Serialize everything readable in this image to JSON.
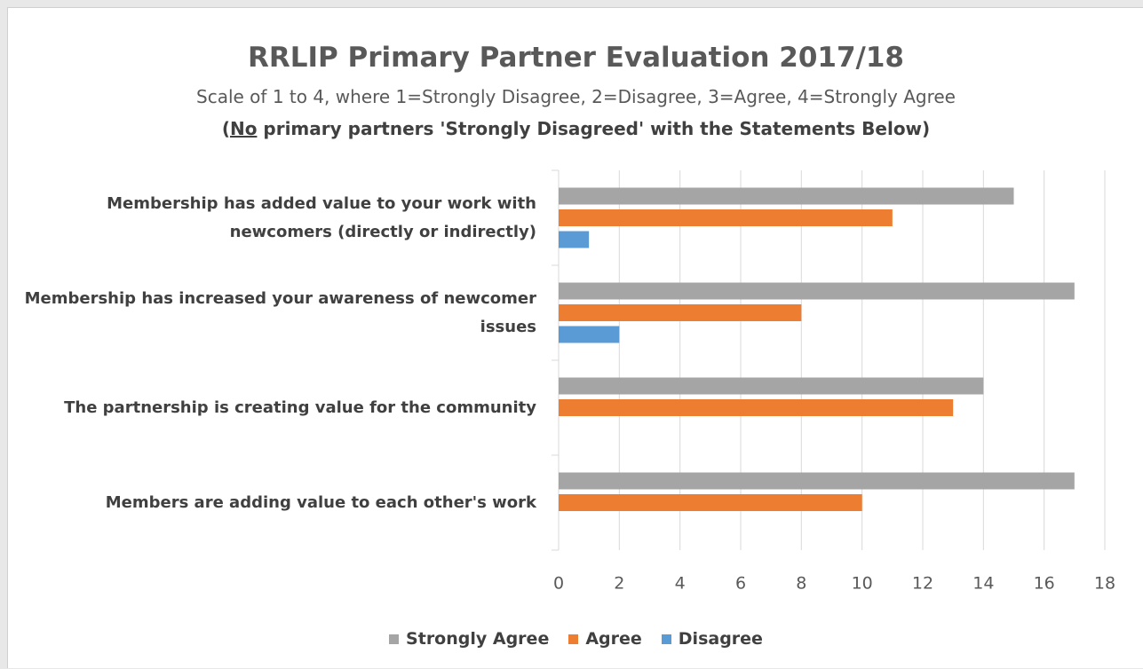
{
  "chart_data": {
    "type": "hbar",
    "title": "RRLIP Primary Partner Evaluation 2017/18",
    "subtitle": "Scale of 1 to 4, where 1=Strongly Disagree, 2=Disagree, 3=Agree, 4=Strongly Agree",
    "note": {
      "prefix": "(",
      "emphasis": "No",
      "rest": " primary partners 'Strongly Disagreed' with the Statements Below)"
    },
    "categories": [
      "Membership has added value to your work with newcomers (directly or indirectly)",
      "Membership has increased your awareness of newcomer issues",
      "The partnership is creating value for the community",
      "Members are adding value to each other's work"
    ],
    "series": [
      {
        "name": "Strongly Agree",
        "color": "#a5a5a5",
        "values": [
          15,
          17,
          14,
          17
        ]
      },
      {
        "name": "Agree",
        "color": "#ed7d31",
        "values": [
          11,
          8,
          13,
          10
        ]
      },
      {
        "name": "Disagree",
        "color": "#5b9bd5",
        "values": [
          1,
          2,
          null,
          null
        ]
      }
    ],
    "xlim": [
      0,
      18
    ],
    "xticks": [
      0,
      2,
      4,
      6,
      8,
      10,
      12,
      14,
      16,
      18
    ],
    "grid": true,
    "legend": "bottom"
  }
}
